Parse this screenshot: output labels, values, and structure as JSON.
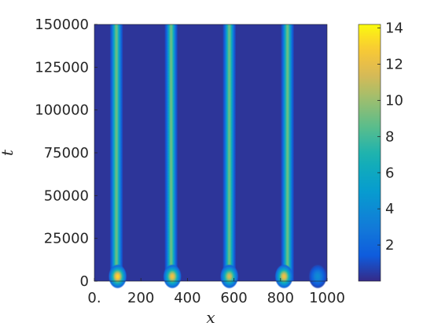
{
  "chart_data": {
    "type": "heatmap",
    "title": "",
    "xlabel": "x",
    "ylabel": "t",
    "xlim": [
      0,
      1000
    ],
    "ylim": [
      0,
      150000
    ],
    "x_ticks": [
      0,
      200,
      400,
      600,
      800,
      1000
    ],
    "x_tick_labels": [
      "0.",
      "200",
      "400",
      "600",
      "800",
      "1000"
    ],
    "y_ticks": [
      0,
      25000,
      50000,
      75000,
      100000,
      125000,
      150000
    ],
    "y_tick_labels": [
      "0",
      "25000",
      "50000",
      "75000",
      "100000",
      "125000",
      "150000"
    ],
    "colorbar": {
      "colormap": "parula",
      "range": [
        0,
        14.2
      ],
      "ticks": [
        2,
        4,
        6,
        8,
        10,
        12,
        14
      ],
      "tick_labels": [
        "2",
        "4",
        "6",
        "8",
        "10",
        "12",
        "14"
      ]
    },
    "stripes": [
      {
        "x_center": 95,
        "width": 55,
        "peak_value": 9.0
      },
      {
        "x_center": 330,
        "width": 55,
        "peak_value": 9.0
      },
      {
        "x_center": 580,
        "width": 55,
        "peak_value": 9.0
      },
      {
        "x_center": 830,
        "width": 55,
        "peak_value": 9.0
      }
    ],
    "transient": {
      "t_end": 8000,
      "peaks": [
        {
          "x": 100,
          "value": 13.5
        },
        {
          "x": 335,
          "value": 12.5
        },
        {
          "x": 580,
          "value": 11.5
        },
        {
          "x": 815,
          "value": 12.5
        },
        {
          "x": 960,
          "value": 4.0
        }
      ]
    },
    "grid": false,
    "background_value": 0.3
  }
}
